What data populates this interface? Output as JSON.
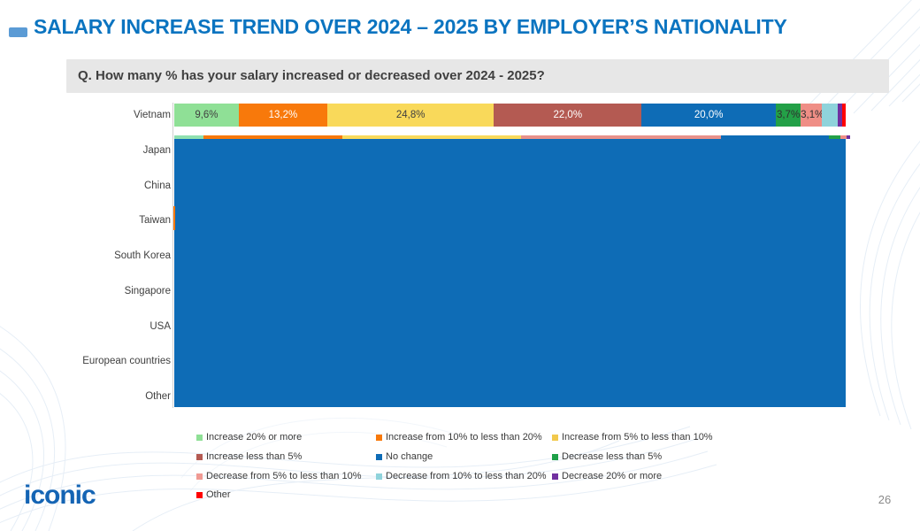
{
  "header": {
    "title": "SALARY INCREASE TREND OVER 2024 – 2025 BY EMPLOYER’S NATIONALITY",
    "accent_color": "#5B9BD5",
    "title_color": "#0B74C0"
  },
  "question": {
    "text": "Q. How many % has your salary increased or decreased over 2024 - 2025?"
  },
  "chart_data": {
    "type": "bar",
    "subtype": "horizontal_stacked_percent",
    "title": "Salary increase trend over 2024 - 2025 by employer's nationality",
    "xlim": [
      0,
      100
    ],
    "legend_position": "bottom",
    "categories": [
      "Vietnam",
      "Japan",
      "China",
      "Taiwan",
      "South Korea",
      "Singapore",
      "USA",
      "European countries",
      "Other"
    ],
    "series_names": [
      "Increase 20% or more",
      "Increase from 10% to less than 20%",
      "Increase from 5% to less than 10%",
      "Increase less than 5%",
      "No change",
      "Decrease less than 5%",
      "Decrease from 5% to less than 10%",
      "Decrease from 10% to less than 20%",
      "Decrease 20% or more",
      "Other"
    ],
    "rows": {
      "Vietnam": {
        "values": [
          9.6,
          13.2,
          24.8,
          22.0,
          20.0,
          3.7,
          3.1,
          2.4,
          0.7,
          0.5
        ],
        "labels": [
          "9,6%",
          "13,2%",
          "24,8%",
          "22,0%",
          "20,0%",
          "3,7%",
          "3,1%",
          "",
          "",
          ""
        ]
      }
    },
    "obscured_note": "Rows Japan through Other are hidden behind an oversized blue 'No change' rectangle (rendering artifact present in the source screenshot); only a thin multicolor sliver of the Japan bar is visible above the block"
  },
  "bar_segments": [
    {
      "label": "9,6%",
      "value": 9.6,
      "color": "#8FE096",
      "text_color": "#404040"
    },
    {
      "label": "13,2%",
      "value": 13.2,
      "color": "#F8790B",
      "text_color": "#FFFFFF"
    },
    {
      "label": "24,8%",
      "value": 24.8,
      "color": "#F9D95A",
      "text_color": "#404040"
    },
    {
      "label": "22,0%",
      "value": 22.0,
      "color": "#B45A52",
      "text_color": "#FFFFFF"
    },
    {
      "label": "20,0%",
      "value": 20.0,
      "color": "#0E6CB6",
      "text_color": "#FFFFFF"
    },
    {
      "label": "3,7%",
      "value": 3.7,
      "color": "#23A047",
      "text_color": "#2F2F2F"
    },
    {
      "label": "3,1%",
      "value": 3.1,
      "color": "#EF8E86",
      "text_color": "#2F2F2F"
    },
    {
      "label": "",
      "value": 2.4,
      "color": "#8FD3DB",
      "text_color": "#2F2F2F"
    },
    {
      "label": "",
      "value": 0.7,
      "color": "#7030A0",
      "text_color": "#FFFFFF"
    },
    {
      "label": "",
      "value": 0.5,
      "color": "#FF0000",
      "text_color": "#FFFFFF"
    }
  ],
  "artifact": {
    "block_color": "#0E6CB6",
    "edge_sliver_color": "#F8790B",
    "sliver_segments": [
      {
        "value": 4.3,
        "color": "#8FE0B0"
      },
      {
        "value": 20.7,
        "color": "#F8790B"
      },
      {
        "value": 26.6,
        "color": "#F9D95A"
      },
      {
        "value": 29.8,
        "color": "#E8918A"
      },
      {
        "value": 16.1,
        "color": "#0E6CB6"
      },
      {
        "value": 1.7,
        "color": "#23A047"
      },
      {
        "value": 0.9,
        "color": "#EF8E86"
      },
      {
        "value": 0.6,
        "color": "#7030A0"
      }
    ]
  },
  "legend": {
    "items": [
      {
        "label": "Increase 20% or more",
        "color": "#8FE096",
        "col": 0,
        "row": 0
      },
      {
        "label": "Increase from 10% to less than 20%",
        "color": "#F8790B",
        "col": 1,
        "row": 0
      },
      {
        "label": "Increase from 5% to less than 10%",
        "color": "#F2C94C",
        "col": 2,
        "row": 0
      },
      {
        "label": "Increase less than 5%",
        "color": "#B45A52",
        "col": 0,
        "row": 1
      },
      {
        "label": "No change",
        "color": "#0E6CB6",
        "col": 1,
        "row": 1
      },
      {
        "label": "Decrease less than 5%",
        "color": "#1EA048",
        "col": 2,
        "row": 1
      },
      {
        "label": "Decrease from 5% to less than 10%",
        "color": "#F09A93",
        "col": 0,
        "row": 2
      },
      {
        "label": "Decrease from 10% to less than 20%",
        "color": "#8FD3DB",
        "col": 1,
        "row": 2
      },
      {
        "label": "Decrease 20% or more",
        "color": "#7030A0",
        "col": 2,
        "row": 2
      },
      {
        "label": "Other",
        "color": "#FF0000",
        "col": 0,
        "row": 3
      }
    ]
  },
  "footer": {
    "logo": "iconic",
    "page_number": "26"
  }
}
